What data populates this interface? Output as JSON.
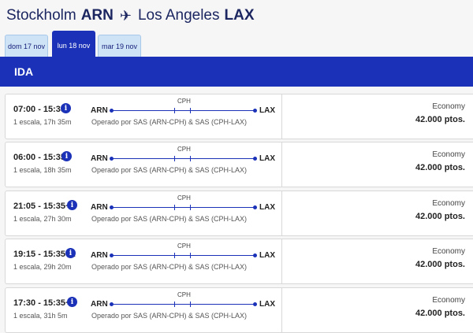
{
  "header": {
    "origin_city": "Stockholm",
    "origin_code": "ARN",
    "dest_city": "Los Angeles",
    "dest_code": "LAX",
    "plane_icon": "airplane-icon"
  },
  "date_tabs": [
    {
      "label": "dom 17 nov",
      "active": false
    },
    {
      "label": "lun 18 nov",
      "active": true
    },
    {
      "label": "mar 19 nov",
      "active": false
    }
  ],
  "section_title": "IDA",
  "colors": {
    "brand_blue": "#1b32b8",
    "tab_light": "#cfe3f7"
  },
  "flights": [
    {
      "times": "07:00 - 15:35",
      "stops": "1 escala, 17h 35m",
      "from": "ARN",
      "to": "LAX",
      "via": "CPH",
      "operator": "Operado por SAS (ARN-CPH) & SAS (CPH-LAX)",
      "cabin": "Economy",
      "price": "42.000 ptos."
    },
    {
      "times": "06:00 - 15:35",
      "stops": "1 escala, 18h 35m",
      "from": "ARN",
      "to": "LAX",
      "via": "CPH",
      "operator": "Operado por SAS (ARN-CPH) & SAS (CPH-LAX)",
      "cabin": "Economy",
      "price": "42.000 ptos."
    },
    {
      "times": "21:05 - 15:35+1",
      "stops": "1 escala, 27h 30m",
      "from": "ARN",
      "to": "LAX",
      "via": "CPH",
      "operator": "Operado por SAS (ARN-CPH) & SAS (CPH-LAX)",
      "cabin": "Economy",
      "price": "42.000 ptos."
    },
    {
      "times": "19:15 - 15:35+1",
      "stops": "1 escala, 29h 20m",
      "from": "ARN",
      "to": "LAX",
      "via": "CPH",
      "operator": "Operado por SAS (ARN-CPH) & SAS (CPH-LAX)",
      "cabin": "Economy",
      "price": "42.000 ptos."
    },
    {
      "times": "17:30 - 15:35+1",
      "stops": "1 escala, 31h 5m",
      "from": "ARN",
      "to": "LAX",
      "via": "CPH",
      "operator": "Operado por SAS (ARN-CPH) & SAS (CPH-LAX)",
      "cabin": "Economy",
      "price": "42.000 ptos."
    }
  ]
}
